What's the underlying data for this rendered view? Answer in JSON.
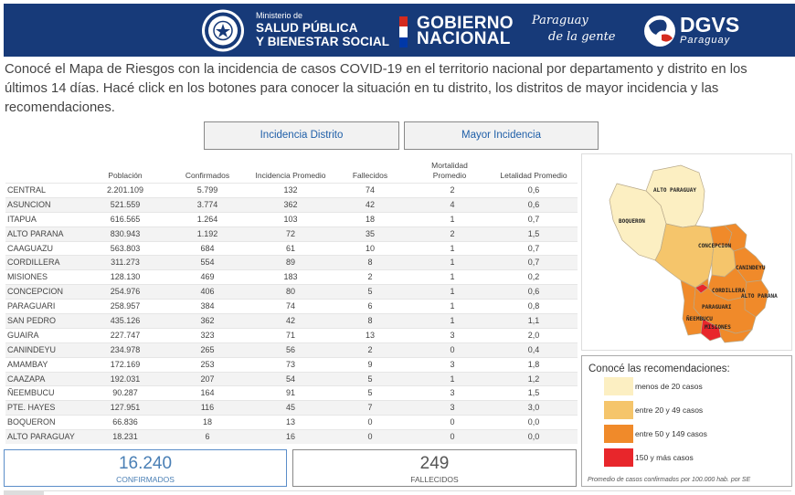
{
  "header": {
    "ministerio_small": "Ministerio de",
    "ministerio_line1": "SALUD PÚBLICA",
    "ministerio_line2": "Y BIENESTAR SOCIAL",
    "gobierno_line1": "GOBIERNO",
    "gobierno_line2": "NACIONAL",
    "paraguay_line1": "Paraguay",
    "paraguay_line2": "de la gente",
    "dgvs": "DGVS",
    "dgvs_sub": "Paraguay"
  },
  "intro": "Conocé el Mapa de Riesgos con la incidencia de casos COVID-19 en el territorio nacional por departamento y distrito en los últimos 14 días. Hacé click en los botones para conocer la situación en tu distrito, los distritos de mayor incidencia y las recomendaciones.",
  "buttons": {
    "incidencia_distrito": "Incidencia Distrito",
    "mayor_incidencia": "Mayor Incidencia"
  },
  "table": {
    "headers": [
      "Población",
      "Confirmados",
      "Incidencia Promedio",
      "Fallecidos",
      "Mortalidad Promedio",
      "Letalidad Promedio"
    ],
    "rows": [
      [
        "CENTRAL",
        "2.201.109",
        "5.799",
        "132",
        "74",
        "2",
        "0,6"
      ],
      [
        "ASUNCION",
        "521.559",
        "3.774",
        "362",
        "42",
        "4",
        "0,6"
      ],
      [
        "ITAPUA",
        "616.565",
        "1.264",
        "103",
        "18",
        "1",
        "0,7"
      ],
      [
        "ALTO PARANA",
        "830.943",
        "1.192",
        "72",
        "35",
        "2",
        "1,5"
      ],
      [
        "CAAGUAZU",
        "563.803",
        "684",
        "61",
        "10",
        "1",
        "0,7"
      ],
      [
        "CORDILLERA",
        "311.273",
        "554",
        "89",
        "8",
        "1",
        "0,7"
      ],
      [
        "MISIONES",
        "128.130",
        "469",
        "183",
        "2",
        "1",
        "0,2"
      ],
      [
        "CONCEPCION",
        "254.976",
        "406",
        "80",
        "5",
        "1",
        "0,6"
      ],
      [
        "PARAGUARI",
        "258.957",
        "384",
        "74",
        "6",
        "1",
        "0,8"
      ],
      [
        "SAN PEDRO",
        "435.126",
        "362",
        "42",
        "8",
        "1",
        "1,1"
      ],
      [
        "GUAIRA",
        "227.747",
        "323",
        "71",
        "13",
        "3",
        "2,0"
      ],
      [
        "CANINDEYU",
        "234.978",
        "265",
        "56",
        "2",
        "0",
        "0,4"
      ],
      [
        "AMAMBAY",
        "172.169",
        "253",
        "73",
        "9",
        "3",
        "1,8"
      ],
      [
        "CAAZAPA",
        "192.031",
        "207",
        "54",
        "5",
        "1",
        "1,2"
      ],
      [
        "ÑEEMBUCU",
        "90.287",
        "164",
        "91",
        "5",
        "3",
        "1,5"
      ],
      [
        "PTE. HAYES",
        "127.951",
        "116",
        "45",
        "7",
        "3",
        "3,0"
      ],
      [
        "BOQUERON",
        "66.836",
        "18",
        "13",
        "0",
        "0",
        "0,0"
      ],
      [
        "ALTO PARAGUAY",
        "18.231",
        "6",
        "16",
        "0",
        "0",
        "0,0"
      ]
    ]
  },
  "stats": {
    "confirmados_value": "16.240",
    "confirmados_label": "CONFIRMADOS",
    "fallecidos_value": "249",
    "fallecidos_label": "FALLECIDOS"
  },
  "map": {
    "labels": [
      "ALTO PARAGUAY",
      "BOQUERON",
      "CONCEPCION",
      "CANINDEYU",
      "CORDILLERA",
      "ALTO PARANA",
      "PARAGUARI",
      "ÑEEMBUCU",
      "MISIONES"
    ]
  },
  "legend": {
    "title": "Conocé las recomendaciones:",
    "items": [
      {
        "label": "menos de 20 casos",
        "color": "#fcefc2"
      },
      {
        "label": "entre 20 y 49 casos",
        "color": "#f5c56b"
      },
      {
        "label": "entre 50 y 149 casos",
        "color": "#f08a2a"
      },
      {
        "label": "150 y más casos",
        "color": "#e8262b"
      }
    ],
    "note": "Promedio de casos confirmados por 100.000 hab. por SE"
  }
}
